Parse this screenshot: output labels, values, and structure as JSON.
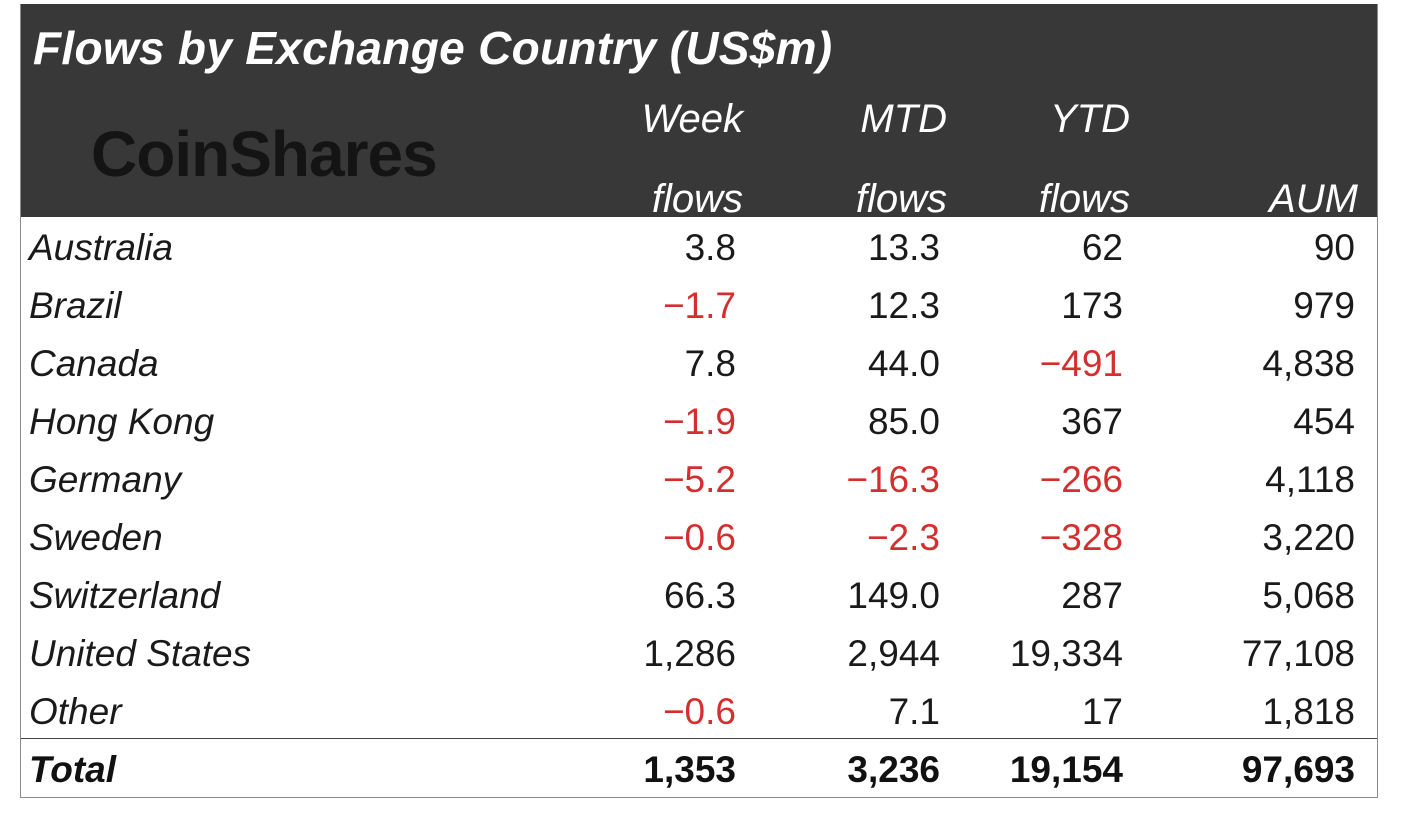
{
  "title": "Flows by Exchange Country (US$m)",
  "logo": "CoinShares",
  "columns": [
    {
      "line1": "Week",
      "line2": "flows"
    },
    {
      "line1": "MTD",
      "line2": "flows"
    },
    {
      "line1": "YTD",
      "line2": "flows"
    },
    {
      "line1": "",
      "line2": "AUM"
    }
  ],
  "rows": [
    {
      "country": "Australia",
      "week": "3.8",
      "mtd": "13.3",
      "ytd": "62",
      "aum": "90"
    },
    {
      "country": "Brazil",
      "week": "-1.7",
      "mtd": "12.3",
      "ytd": "173",
      "aum": "979"
    },
    {
      "country": "Canada",
      "week": "7.8",
      "mtd": "44.0",
      "ytd": "-491",
      "aum": "4,838"
    },
    {
      "country": "Hong Kong",
      "week": "-1.9",
      "mtd": "85.0",
      "ytd": "367",
      "aum": "454"
    },
    {
      "country": "Germany",
      "week": "-5.2",
      "mtd": "-16.3",
      "ytd": "-266",
      "aum": "4,118"
    },
    {
      "country": "Sweden",
      "week": "-0.6",
      "mtd": "-2.3",
      "ytd": "-328",
      "aum": "3,220"
    },
    {
      "country": "Switzerland",
      "week": "66.3",
      "mtd": "149.0",
      "ytd": "287",
      "aum": "5,068"
    },
    {
      "country": "United States",
      "week": "1,286",
      "mtd": "2,944",
      "ytd": "19,334",
      "aum": "77,108"
    },
    {
      "country": "Other",
      "week": "-0.6",
      "mtd": "7.1",
      "ytd": "17",
      "aum": "1,818"
    }
  ],
  "total": {
    "country": "Total",
    "week": "1,353",
    "mtd": "3,236",
    "ytd": "19,154",
    "aum": "97,693"
  },
  "colors": {
    "header_bg": "#383838",
    "negative": "#d42f2f",
    "text": "#1a1a1a"
  }
}
